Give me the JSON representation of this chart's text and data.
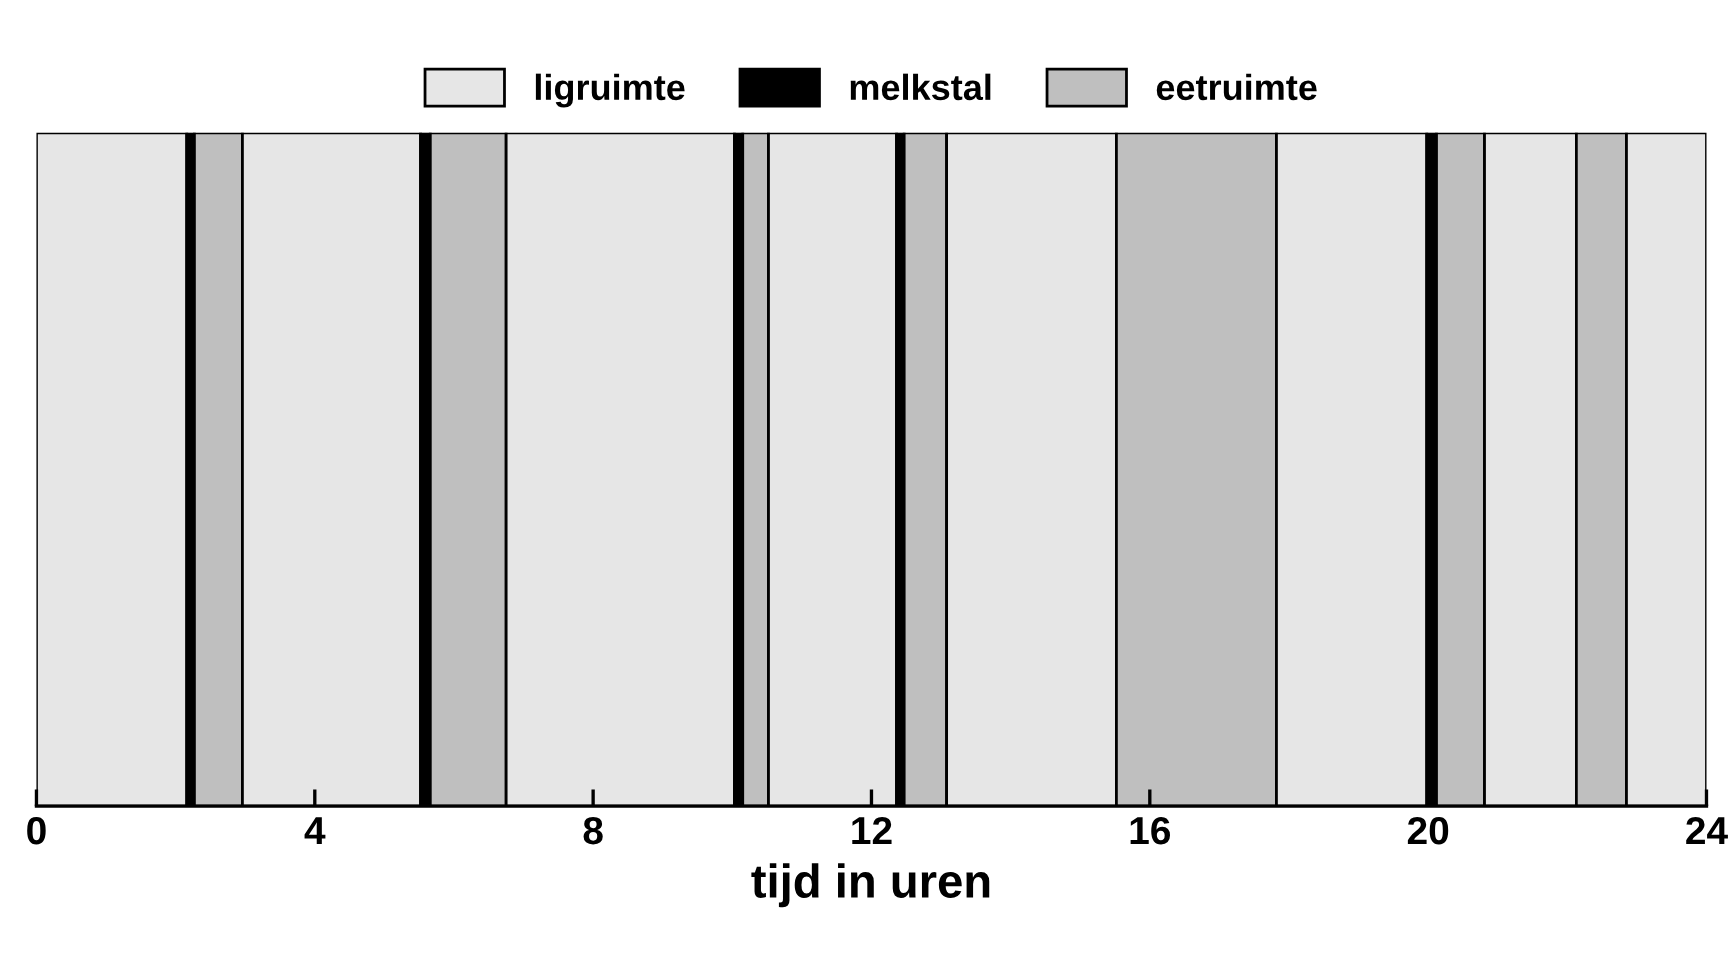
{
  "chart_data": {
    "type": "bar",
    "orientation": "horizontal",
    "stacked": true,
    "xlabel": "tijd in uren",
    "categories": [
      null
    ],
    "xlim": [
      0,
      24
    ],
    "xticks": [
      0,
      4,
      8,
      12,
      16,
      20,
      24
    ],
    "tick_labels": "x",
    "grid": false,
    "legend": "top",
    "series": [
      {
        "name": "ligruimte",
        "color": "#e6e6e6",
        "values": [
          2.16
        ]
      },
      {
        "name": "melkstal",
        "color": "#000000",
        "values": [
          0.11
        ]
      },
      {
        "name": "eetruimte",
        "color": "#bfbfbf",
        "values": [
          0.69
        ]
      },
      {
        "color": "#e6e6e6",
        "values": [
          2.56
        ]
      },
      {
        "color": "#000000",
        "values": [
          0.14
        ]
      },
      {
        "color": "#bfbfbf",
        "values": [
          1.09
        ]
      },
      {
        "color": "#e6e6e6",
        "values": [
          3.28
        ]
      },
      {
        "color": "#000000",
        "values": [
          0.12
        ]
      },
      {
        "color": "#bfbfbf",
        "values": [
          0.37
        ]
      },
      {
        "color": "#e6e6e6",
        "values": [
          1.84
        ]
      },
      {
        "color": "#000000",
        "values": [
          0.11
        ]
      },
      {
        "color": "#bfbfbf",
        "values": [
          0.61
        ]
      },
      {
        "color": "#e6e6e6",
        "values": [
          2.44
        ]
      },
      {
        "color": "#bfbfbf",
        "values": [
          2.3
        ]
      },
      {
        "color": "#e6e6e6",
        "values": [
          2.16
        ]
      },
      {
        "color": "#000000",
        "values": [
          0.14
        ]
      },
      {
        "color": "#bfbfbf",
        "values": [
          0.69
        ]
      },
      {
        "color": "#e6e6e6",
        "values": [
          1.32
        ]
      },
      {
        "color": "#bfbfbf",
        "values": [
          0.72
        ]
      },
      {
        "color": "#e6e6e6",
        "values": [
          1.15
        ]
      }
    ]
  }
}
